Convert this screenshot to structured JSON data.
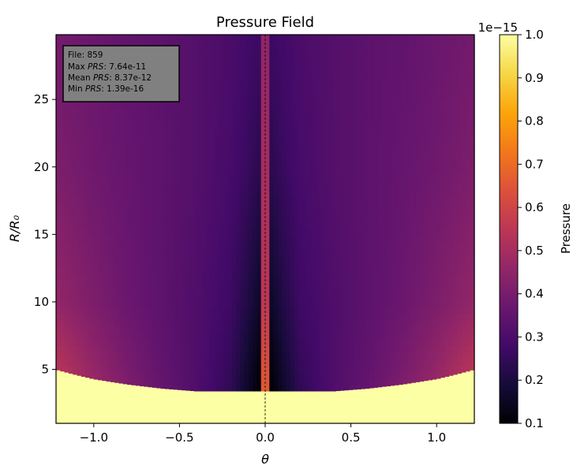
{
  "chart_data": {
    "type": "heatmap",
    "title": "Pressure Field",
    "xlabel": "θ",
    "ylabel": "R/R₀",
    "xlim": [
      -1.22,
      1.22
    ],
    "ylim": [
      1.0,
      29.8
    ],
    "xticks": [
      -1.0,
      -0.5,
      0.0,
      0.5,
      1.0
    ],
    "xtick_labels": [
      "−1.0",
      "−0.5",
      "0.0",
      "0.5",
      "1.0"
    ],
    "yticks": [
      5,
      10,
      15,
      20,
      25
    ],
    "ytick_labels": [
      "5",
      "10",
      "15",
      "20",
      "25"
    ],
    "colorbar": {
      "label": "Pressure",
      "offset_text": "1e−15",
      "range": [
        0.1,
        1.0
      ],
      "ticks": [
        0.1,
        0.2,
        0.3,
        0.4,
        0.5,
        0.6,
        0.7,
        0.8,
        0.9,
        1.0
      ],
      "tick_labels": [
        "0.1",
        "0.2",
        "0.3",
        "0.4",
        "0.5",
        "0.6",
        "0.7",
        "0.8",
        "0.9",
        "1.0"
      ],
      "colormap": "inferno"
    },
    "field_model": {
      "symmetric_in_theta": true,
      "abs_theta": [
        0.03,
        0.1,
        0.2,
        0.4,
        0.6,
        0.8,
        1.0,
        1.22
      ],
      "r_rows": [
        3.4,
        5,
        10,
        20,
        29.8
      ],
      "values": [
        [
          0.1,
          0.16,
          0.24,
          0.31,
          0.36,
          0.42,
          0.48,
          0.56
        ],
        [
          0.11,
          0.17,
          0.25,
          0.31,
          0.35,
          0.4,
          0.46,
          0.54
        ],
        [
          0.16,
          0.21,
          0.27,
          0.31,
          0.34,
          0.37,
          0.41,
          0.46
        ],
        [
          0.23,
          0.26,
          0.29,
          0.32,
          0.34,
          0.36,
          0.38,
          0.41
        ],
        [
          0.27,
          0.28,
          0.3,
          0.32,
          0.34,
          0.35,
          0.37,
          0.39
        ]
      ],
      "center_column_halfwidth": 0.03,
      "center_column_values": {
        "r": [
          3.4,
          10,
          29.8
        ],
        "values": [
          0.66,
          0.55,
          0.45
        ]
      },
      "inner_boundary": {
        "abs_theta": [
          0,
          0.4,
          0.6,
          0.8,
          1.0,
          1.1,
          1.22
        ],
        "r": [
          3.4,
          3.4,
          3.6,
          3.9,
          4.3,
          4.6,
          5.0
        ]
      },
      "inner_fill_value": 1.0
    },
    "center_line": {
      "theta": 0.0,
      "style": "dashed"
    }
  },
  "info_box": {
    "file": "File: 859",
    "max_prefix": "Max ",
    "max_value": ": 7.64e-11",
    "mean_prefix": "Mean ",
    "mean_value": ": 8.37e-12",
    "min_prefix": "Min ",
    "min_value": ": 1.39e-16",
    "var": "PRS"
  }
}
